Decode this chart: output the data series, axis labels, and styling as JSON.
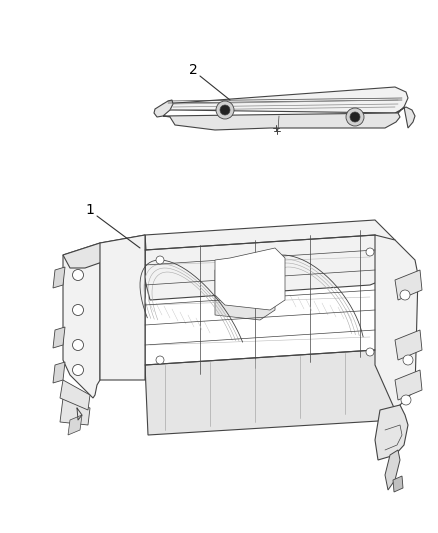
{
  "background_color": "#ffffff",
  "figure_width": 4.38,
  "figure_height": 5.33,
  "dpi": 100,
  "label_1": "1",
  "label_2": "2",
  "label_color": "#000000",
  "line_color": "#555555",
  "edge_color": "#444444",
  "font_size": 10
}
